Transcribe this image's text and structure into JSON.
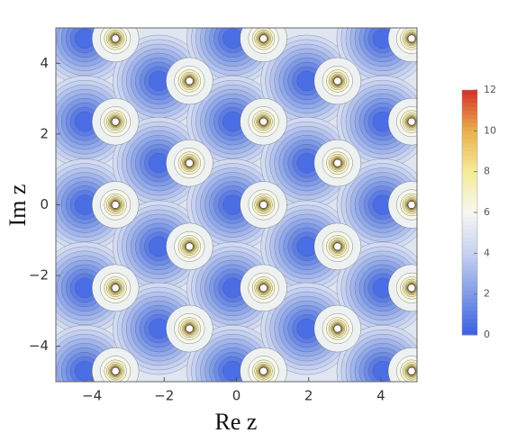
{
  "chart_data": {
    "type": "contour",
    "xlabel": "Re z",
    "ylabel": "Im z",
    "xlim": [
      -5,
      5
    ],
    "ylim": [
      -5,
      5
    ],
    "xticks": [
      {
        "value": -4,
        "label": "−4"
      },
      {
        "value": -2,
        "label": "−2"
      },
      0,
      2,
      4
    ],
    "yticks": [
      {
        "value": -4,
        "label": "−4"
      },
      {
        "value": -2,
        "label": "−2"
      },
      0,
      2,
      4
    ],
    "series": [
      {
        "name": "minima",
        "kind": "min",
        "x": [
          -4.2,
          -4.2,
          -4.2,
          -4.2,
          -4.2,
          -2.15,
          -2.15,
          -2.15,
          -2.15,
          -0.1,
          -0.1,
          -0.1,
          -0.1,
          -0.1,
          1.95,
          1.95,
          1.95,
          1.95,
          4.05,
          4.05,
          4.05,
          4.05,
          4.05
        ],
        "values": [
          4.7,
          2.35,
          0,
          -2.35,
          -4.7,
          3.5,
          1.18,
          -1.18,
          -3.5,
          4.7,
          2.35,
          0,
          -2.35,
          -4.7,
          3.5,
          1.18,
          -1.18,
          -3.5,
          4.7,
          2.35,
          0,
          -2.35,
          -4.7
        ]
      },
      {
        "name": "poles",
        "kind": "pole",
        "x": [
          -3.35,
          -3.35,
          -3.35,
          -3.35,
          -3.35,
          -1.3,
          -1.3,
          -1.3,
          -1.3,
          0.75,
          0.75,
          0.75,
          0.75,
          0.75,
          2.8,
          2.8,
          2.8,
          2.8,
          4.85,
          4.85,
          4.85,
          4.85,
          4.85
        ],
        "values": [
          4.7,
          2.35,
          0,
          -2.35,
          -4.7,
          3.5,
          1.18,
          -1.18,
          -3.5,
          4.7,
          2.35,
          0,
          -2.35,
          -4.7,
          3.5,
          1.18,
          -1.18,
          -3.5,
          4.7,
          2.35,
          0,
          -2.35,
          -4.7
        ]
      }
    ],
    "colorbar": {
      "lim": [
        0,
        12
      ],
      "ticks": [
        0,
        2,
        4,
        6,
        8,
        10,
        12
      ],
      "colors": [
        "#3a5fe3",
        "#7f9ae6",
        "#c5d1f0",
        "#f7f8f2",
        "#f4ec9a",
        "#eab04d",
        "#d4302b"
      ]
    }
  }
}
